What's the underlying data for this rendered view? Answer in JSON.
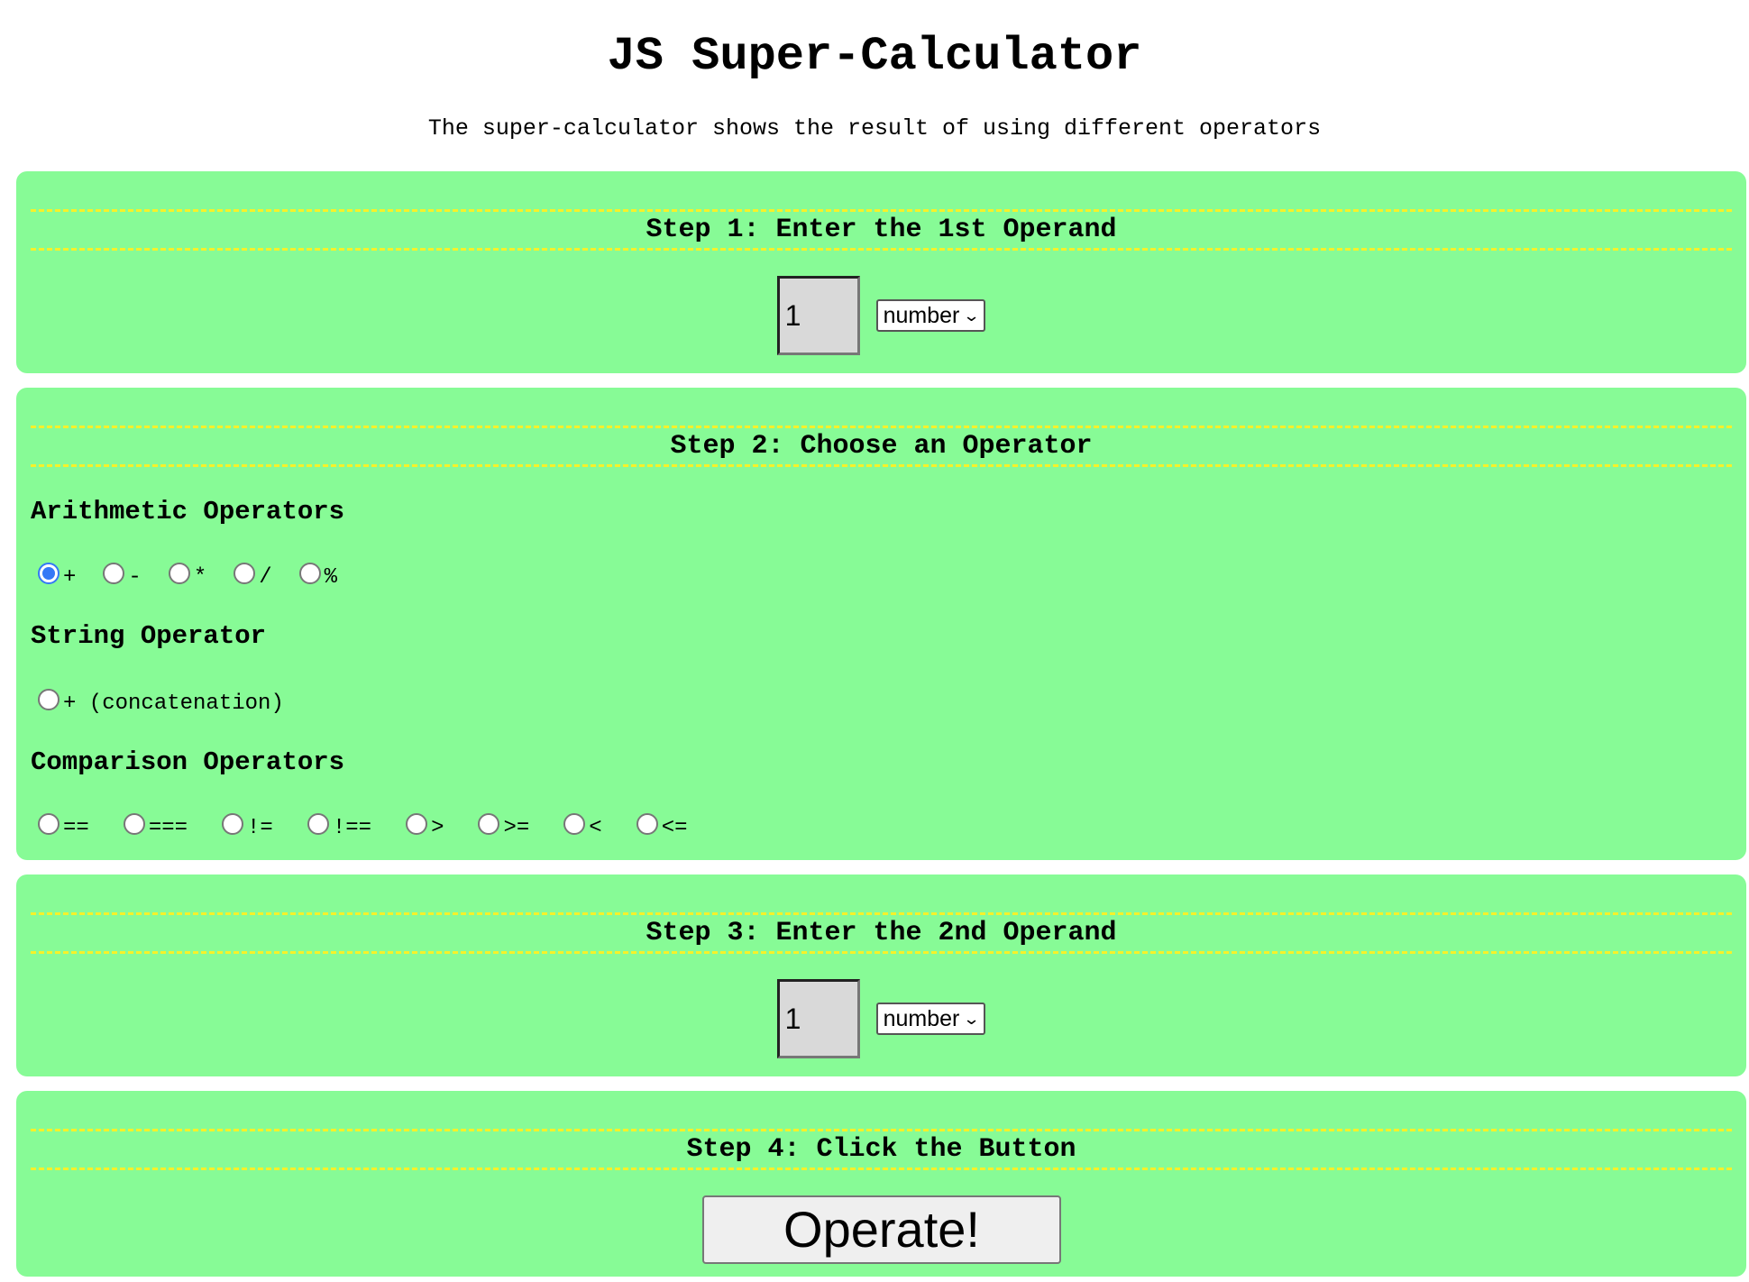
{
  "header": {
    "title": "JS Super-Calculator",
    "subtitle": "The super-calculator shows the result of using different operators"
  },
  "step1": {
    "title": "Step 1: Enter the 1st Operand",
    "operand_value": "1",
    "type_selected": "number"
  },
  "step2": {
    "title": "Step 2: Choose an Operator",
    "arithmetic": {
      "heading": "Arithmetic Operators",
      "options": [
        "+",
        "-",
        "*",
        "/",
        "%"
      ],
      "selected": "+"
    },
    "string": {
      "heading": "String Operator",
      "options": [
        "+ (concatenation)"
      ]
    },
    "comparison": {
      "heading": "Comparison Operators",
      "options": [
        "==",
        "===",
        "!=",
        "!==",
        ">",
        ">=",
        "<",
        "<="
      ]
    }
  },
  "step3": {
    "title": "Step 3: Enter the 2nd Operand",
    "operand_value": "1",
    "type_selected": "number"
  },
  "step4": {
    "title": "Step 4: Click the Button",
    "button_label": "Operate!"
  },
  "colors": {
    "panel_bg": "#87fb96",
    "dash_color": "#f6f12a",
    "radio_checked": "#3478f6"
  },
  "icons": {
    "select_caret": "chevron-down-icon"
  }
}
